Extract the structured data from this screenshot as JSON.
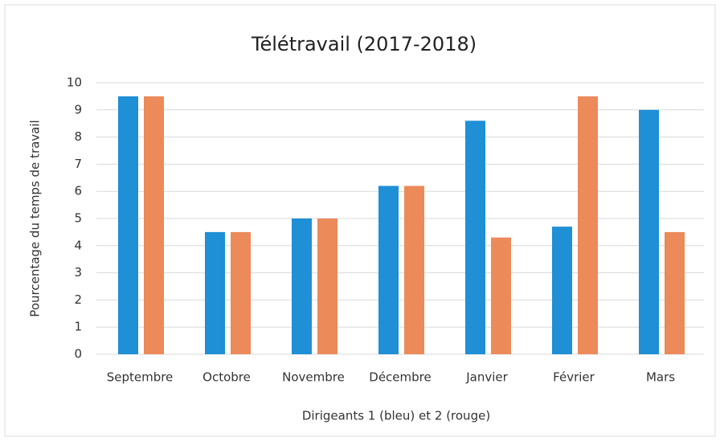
{
  "chart_data": {
    "type": "bar",
    "title": "Télétravail (2017-2018)",
    "x_label": "Dirigeants 1 (bleu) et 2 (rouge)",
    "y_label": "Pourcentage du temps de travail",
    "categories": [
      "Septembre",
      "Octobre",
      "Novembre",
      "Décembre",
      "Janvier",
      "Février",
      "Mars"
    ],
    "series": [
      {
        "color": "#1f8fd6",
        "values": [
          9.5,
          4.5,
          5,
          6.2,
          8.6,
          4.7,
          9.0
        ]
      },
      {
        "color": "#ec8a5a",
        "values": [
          9.5,
          4.5,
          5,
          6.2,
          4.3,
          9.5,
          4.5
        ]
      }
    ],
    "ylim": [
      0,
      10
    ],
    "yticks": [
      0,
      1,
      2,
      3,
      4,
      5,
      6,
      7,
      8,
      9,
      10
    ],
    "grid": true
  }
}
